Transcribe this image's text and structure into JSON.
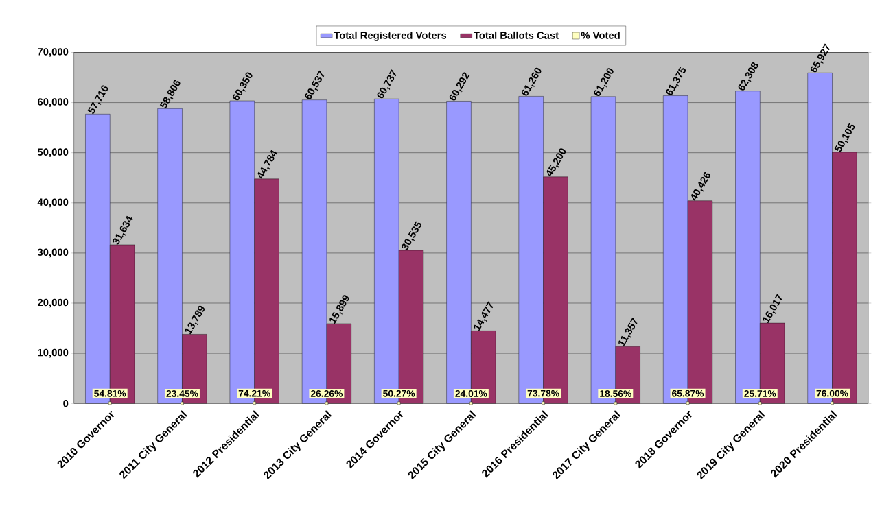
{
  "chart_data": {
    "type": "bar",
    "categories": [
      "2010 Governor",
      "2011 City General",
      "2012 Presidential",
      "2013 City General",
      "2014 Governor",
      "2015 City General",
      "2016 Presidential",
      "2017 City General",
      "2018 Governor",
      "2019 City General",
      "2020 Presidential"
    ],
    "series": [
      {
        "name": "Total Registered Voters",
        "color": "#9999ff",
        "values": [
          57716,
          58806,
          60350,
          60537,
          60737,
          60292,
          61260,
          61200,
          61375,
          62308,
          65927
        ],
        "value_labels": [
          "57,716",
          "58,806",
          "60,350",
          "60,537",
          "60,737",
          "60,292",
          "61,260",
          "61,200",
          "61,375",
          "62,308",
          "65,927"
        ]
      },
      {
        "name": "Total Ballots Cast",
        "color": "#993366",
        "values": [
          31634,
          13789,
          44784,
          15899,
          30535,
          14477,
          45200,
          11357,
          40426,
          16017,
          50105
        ],
        "value_labels": [
          "31,634",
          "13,789",
          "44,784",
          "15,899",
          "30,535",
          "14,477",
          "45,200",
          "11,357",
          "40,426",
          "16,017",
          "50,105"
        ]
      },
      {
        "name": "% Voted",
        "color": "#ffffc0",
        "type": "scatter",
        "values": [
          54.81,
          23.45,
          74.21,
          26.26,
          50.27,
          24.01,
          73.78,
          18.56,
          65.87,
          25.71,
          76.0
        ],
        "value_labels": [
          "54.81%",
          "23.45%",
          "74.21%",
          "26.26%",
          "50.27%",
          "24.01%",
          "73.78%",
          "18.56%",
          "65.87%",
          "25.71%",
          "76.00%"
        ]
      }
    ],
    "ylim": [
      0,
      70000
    ],
    "yticks": [
      {
        "value": 0,
        "label": "0"
      },
      {
        "value": 10000,
        "label": "10,000"
      },
      {
        "value": 20000,
        "label": "20,000"
      },
      {
        "value": 30000,
        "label": "30,000"
      },
      {
        "value": 40000,
        "label": "40,000"
      },
      {
        "value": 50000,
        "label": "50,000"
      },
      {
        "value": 60000,
        "label": "60,000"
      },
      {
        "value": 70000,
        "label": "70,000"
      }
    ],
    "grid": "y",
    "legend": "top"
  }
}
